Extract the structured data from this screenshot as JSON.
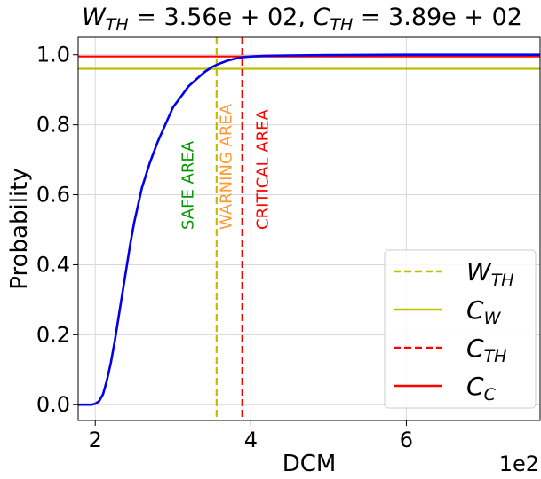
{
  "chart_data": {
    "type": "line",
    "title": {
      "w_symbol": "W",
      "w_sub": "TH",
      "w_value": " = 3.56e + 02,  ",
      "c_symbol": "C",
      "c_sub": "TH",
      "c_value": " = 3.89e + 02"
    },
    "xlabel": "DCM",
    "ylabel": "Probability",
    "x_offset_label": "1e2",
    "xlim": [
      1.78,
      7.72
    ],
    "ylim": [
      -0.045,
      1.05
    ],
    "xticks": [
      2,
      4,
      6
    ],
    "yticks": [
      0.0,
      0.2,
      0.4,
      0.6,
      0.8,
      1.0
    ],
    "xtick_labels": [
      "2",
      "4",
      "6"
    ],
    "ytick_labels": [
      "0.0",
      "0.2",
      "0.4",
      "0.6",
      "0.8",
      "1.0"
    ],
    "grid": true,
    "series": [
      {
        "type": "line",
        "color": "#0000ee",
        "x": [
          1.78,
          1.95,
          2.0,
          2.05,
          2.1,
          2.15,
          2.2,
          2.25,
          2.3,
          2.35,
          2.4,
          2.45,
          2.5,
          2.55,
          2.6,
          2.7,
          2.8,
          2.9,
          3.0,
          3.1,
          3.2,
          3.3,
          3.4,
          3.5,
          3.6,
          3.7,
          3.8,
          3.9,
          4.0,
          4.2,
          4.5,
          5.0,
          6.0,
          7.72
        ],
        "y": [
          0.0,
          0.0,
          0.003,
          0.01,
          0.03,
          0.07,
          0.12,
          0.18,
          0.25,
          0.32,
          0.39,
          0.46,
          0.52,
          0.57,
          0.62,
          0.69,
          0.75,
          0.8,
          0.85,
          0.88,
          0.91,
          0.93,
          0.95,
          0.965,
          0.975,
          0.983,
          0.989,
          0.993,
          0.995,
          0.997,
          0.998,
          0.999,
          1.0,
          1.0
        ]
      }
    ],
    "reference_lines": [
      {
        "key": "w_th",
        "orientation": "vertical",
        "value": 3.56,
        "color": "#bfbf00",
        "dash": true
      },
      {
        "key": "c_w",
        "orientation": "horizontal",
        "value": 0.96,
        "color": "#bfbf00",
        "dash": false
      },
      {
        "key": "c_th",
        "orientation": "vertical",
        "value": 3.89,
        "color": "#ff0000",
        "dash": true
      },
      {
        "key": "c_c",
        "orientation": "horizontal",
        "value": 0.995,
        "color": "#ff0000",
        "dash": false
      }
    ],
    "annotations": [
      {
        "text": "SAFE AREA",
        "x": 3.26,
        "y": 0.5,
        "rotation": -90,
        "color": "#009900"
      },
      {
        "text": "WARNING AREA",
        "x": 3.75,
        "y": 0.5,
        "rotation": -90,
        "color": "#ff9933"
      },
      {
        "text": "CRITICAL AREA",
        "x": 4.22,
        "y": 0.5,
        "rotation": -90,
        "color": "#ff0000"
      }
    ],
    "legend": {
      "position": "bottom-right",
      "entries": [
        {
          "symbol": "W",
          "sub": "TH",
          "color": "#bfbf00",
          "dash": true
        },
        {
          "symbol": "C",
          "sub": "W",
          "color": "#bfbf00",
          "dash": false
        },
        {
          "symbol": "C",
          "sub": "TH",
          "color": "#ff0000",
          "dash": true
        },
        {
          "symbol": "C",
          "sub": "C",
          "color": "#ff0000",
          "dash": false
        }
      ]
    }
  }
}
